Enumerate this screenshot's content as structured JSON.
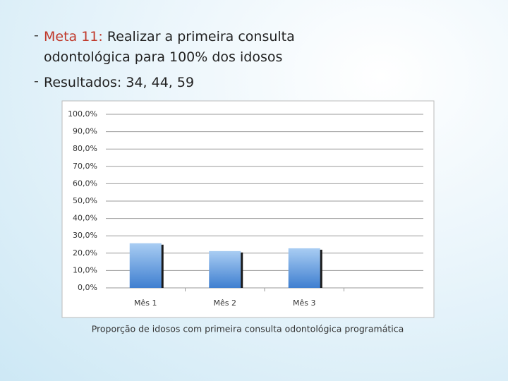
{
  "bullets": [
    {
      "label": "Meta 11:",
      "text": "Realizar a primeira consulta odontológica para 100% dos idosos"
    },
    {
      "text": "Resultados: 34, 44, 59"
    }
  ],
  "chart_data": {
    "type": "bar",
    "categories": [
      "Mês 1",
      "Mês 2",
      "Mês 3",
      null
    ],
    "values": [
      25.7,
      21.2,
      22.8,
      null
    ],
    "color": "#4f81bd",
    "ylim": [
      0,
      100
    ],
    "yticks": [
      {
        "value": 0,
        "label": "0,0%"
      },
      {
        "value": 10,
        "label": "10,0%"
      },
      {
        "value": 20,
        "label": "20,0%"
      },
      {
        "value": 30,
        "label": "30,0%"
      },
      {
        "value": 40,
        "label": "40,0%"
      },
      {
        "value": 50,
        "label": "50,0%"
      },
      {
        "value": 60,
        "label": "60,0%"
      },
      {
        "value": 70,
        "label": "70,0%"
      },
      {
        "value": 80,
        "label": "80,0%"
      },
      {
        "value": 90,
        "label": "90,0%"
      },
      {
        "value": 100,
        "label": "100,0%"
      }
    ],
    "grid": true,
    "caption": "Proporção de idosos com primeira consulta odontológica programática"
  }
}
